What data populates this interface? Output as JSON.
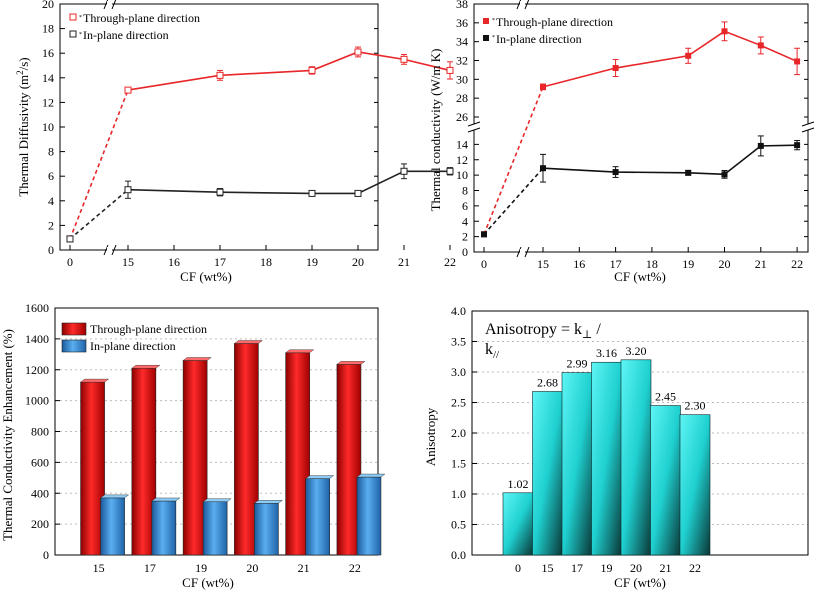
{
  "chart_data": [
    {
      "id": "diffusivity",
      "type": "line",
      "ylabel": "Thermal Diffusivity (m²/s)",
      "ylabel_main": "Thermal Diffusivity (m",
      "ylabel_sup": "2",
      "ylabel_tail": "/s)",
      "xlabel": "CF (wt%)",
      "ylim": [
        0,
        20
      ],
      "yticks": [
        0,
        2,
        4,
        6,
        8,
        10,
        12,
        14,
        16,
        18,
        20
      ],
      "categories": [
        "0",
        "15",
        "16",
        "17",
        "18",
        "19",
        "20",
        "21",
        "22"
      ],
      "series": [
        {
          "name": "Through-plane direction",
          "legend_marker": "*",
          "color": "#e8262a",
          "x": [
            0,
            15,
            17,
            19,
            20,
            21,
            22
          ],
          "values": [
            0.9,
            13.0,
            14.2,
            14.6,
            16.1,
            15.5,
            14.6
          ],
          "errors": [
            0.1,
            0.2,
            0.4,
            0.3,
            0.4,
            0.4,
            0.7
          ]
        },
        {
          "name": "In-plane direction",
          "legend_marker": "*",
          "color": "#222222",
          "x": [
            0,
            15,
            17,
            19,
            20,
            21,
            22
          ],
          "values": [
            0.9,
            4.9,
            4.7,
            4.6,
            4.6,
            6.4,
            6.4
          ],
          "errors": [
            0.1,
            0.7,
            0.3,
            0.15,
            0.1,
            0.6,
            0.3
          ]
        }
      ]
    },
    {
      "id": "conductivity",
      "type": "line",
      "ylabel": "Thermal conductivity (W/m K)",
      "xlabel": "CF (wt%)",
      "ylim_upper": [
        26,
        38
      ],
      "ylim_lower": [
        0,
        16
      ],
      "yticks_upper": [
        26,
        28,
        30,
        32,
        34,
        36,
        38
      ],
      "yticks_lower": [
        0,
        2,
        4,
        6,
        8,
        10,
        12,
        14
      ],
      "categories": [
        "0",
        "15",
        "16",
        "17",
        "18",
        "19",
        "20",
        "21",
        "22"
      ],
      "series": [
        {
          "name": "Through-plane direction",
          "legend_marker": "*",
          "color": "#e8262a",
          "x": [
            0,
            15,
            17,
            19,
            20,
            21,
            22
          ],
          "values": [
            2.3,
            29.2,
            31.2,
            32.5,
            35.1,
            33.6,
            31.9
          ],
          "errors": [
            0.1,
            0.3,
            0.9,
            0.8,
            1.0,
            0.9,
            1.4
          ]
        },
        {
          "name": "In-plane direction",
          "legend_marker": "*",
          "color": "#111111",
          "x": [
            0,
            15,
            17,
            19,
            20,
            21,
            22
          ],
          "values": [
            2.3,
            10.9,
            10.4,
            10.3,
            10.1,
            13.8,
            13.9
          ],
          "errors": [
            0.1,
            1.8,
            0.7,
            0.3,
            0.5,
            1.3,
            0.6
          ]
        }
      ]
    },
    {
      "id": "enhancement",
      "type": "bar",
      "ylabel": "Thermal Conductivity Enhancement (%)",
      "xlabel": "CF (wt%)",
      "ylim": [
        0,
        1600
      ],
      "yticks": [
        0,
        200,
        400,
        600,
        800,
        1000,
        1200,
        1400,
        1600
      ],
      "categories": [
        "15",
        "17",
        "19",
        "20",
        "21",
        "22"
      ],
      "series": [
        {
          "name": "Through-plane direction",
          "color": "#e02020",
          "values": [
            1120,
            1210,
            1260,
            1370,
            1310,
            1235
          ]
        },
        {
          "name": "In-plane direction",
          "color": "#3a8ad6",
          "values": [
            370,
            350,
            345,
            335,
            495,
            505
          ]
        }
      ]
    },
    {
      "id": "anisotropy",
      "type": "bar",
      "ylabel": "Anisotropy",
      "xlabel": "CF (wt%)",
      "title": "Anisotropy = k⊥ / k//",
      "title_main": "Anisotropy = k",
      "title_sub1": "⊥",
      "title_slash": " /",
      "title_line2": "k",
      "title_sub2": "//",
      "ylim": [
        0,
        4
      ],
      "yticks": [
        "0.0",
        "0.5",
        "1.0",
        "1.5",
        "2.0",
        "2.5",
        "3.0",
        "3.5",
        "4.0"
      ],
      "categories": [
        "0",
        "15",
        "17",
        "19",
        "20",
        "21",
        "22"
      ],
      "values": [
        1.02,
        2.68,
        2.99,
        3.16,
        3.2,
        2.45,
        2.3
      ],
      "labels": [
        "1.02",
        "2.68",
        "2.99",
        "3.16",
        "3.20",
        "2.45",
        "2.30"
      ],
      "color": "#22e0e0"
    }
  ]
}
